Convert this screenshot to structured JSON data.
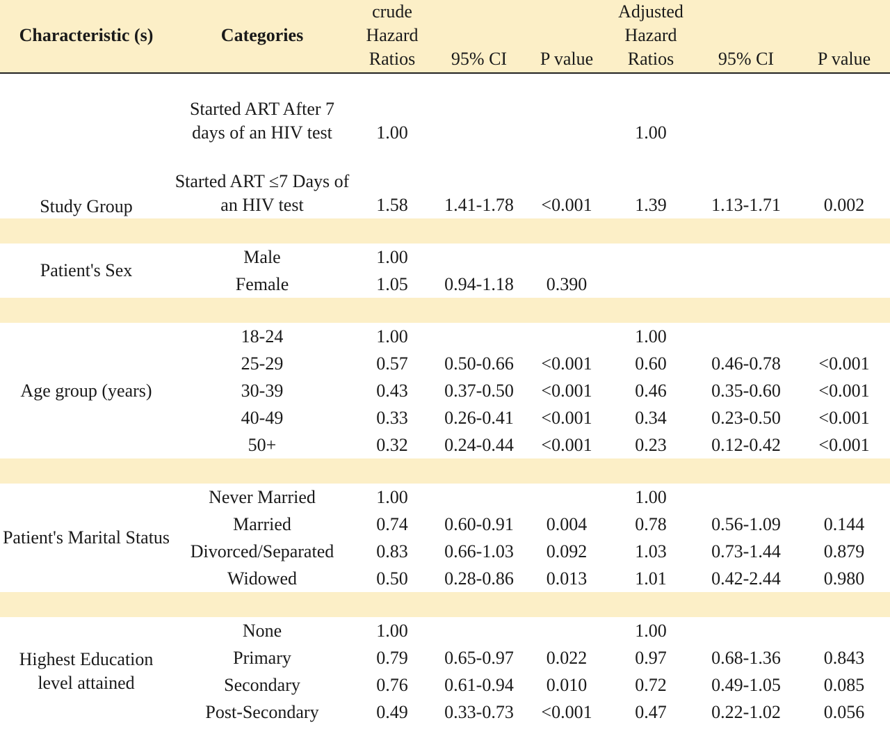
{
  "headers": {
    "characteristic": "Characteristic (s)",
    "categories": "Categories",
    "crude_hr": "crude Hazard Ratios",
    "ci1": "95% CI",
    "p1": "P value",
    "adj_hr": "Adjusted Hazard Ratios",
    "ci2": "95% CI",
    "p2": "P value"
  },
  "study_group": {
    "label": "Study Group",
    "rows": [
      {
        "cat": "Started ART After 7 days of an HIV test",
        "chr": "1.00",
        "ci1": "",
        "p1": "",
        "ahr": "1.00",
        "ci2": "",
        "p2": ""
      },
      {
        "cat": "Started ART ≤7 Days of an HIV test",
        "chr": "1.58",
        "ci1": "1.41-1.78",
        "p1": "<0.001",
        "ahr": "1.39",
        "ci2": "1.13-1.71",
        "p2": "0.002"
      }
    ]
  },
  "sex": {
    "label": "Patient's Sex",
    "rows": [
      {
        "cat": "Male",
        "chr": "1.00",
        "ci1": "",
        "p1": "",
        "ahr": "",
        "ci2": "",
        "p2": ""
      },
      {
        "cat": "Female",
        "chr": "1.05",
        "ci1": "0.94-1.18",
        "p1": "0.390",
        "ahr": "",
        "ci2": "",
        "p2": ""
      }
    ]
  },
  "age": {
    "label": "Age group (years)",
    "rows": [
      {
        "cat": "18-24",
        "chr": "1.00",
        "ci1": "",
        "p1": "",
        "ahr": "1.00",
        "ci2": "",
        "p2": ""
      },
      {
        "cat": "25-29",
        "chr": "0.57",
        "ci1": "0.50-0.66",
        "p1": "<0.001",
        "ahr": "0.60",
        "ci2": "0.46-0.78",
        "p2": "<0.001"
      },
      {
        "cat": "30-39",
        "chr": "0.43",
        "ci1": "0.37-0.50",
        "p1": "<0.001",
        "ahr": "0.46",
        "ci2": "0.35-0.60",
        "p2": "<0.001"
      },
      {
        "cat": "40-49",
        "chr": "0.33",
        "ci1": "0.26-0.41",
        "p1": "<0.001",
        "ahr": "0.34",
        "ci2": "0.23-0.50",
        "p2": "<0.001"
      },
      {
        "cat": "50+",
        "chr": "0.32",
        "ci1": "0.24-0.44",
        "p1": "<0.001",
        "ahr": "0.23",
        "ci2": "0.12-0.42",
        "p2": "<0.001"
      }
    ]
  },
  "marital": {
    "label": "Patient's Marital Status",
    "rows": [
      {
        "cat": "Never Married",
        "chr": "1.00",
        "ci1": "",
        "p1": "",
        "ahr": "1.00",
        "ci2": "",
        "p2": ""
      },
      {
        "cat": "Married",
        "chr": "0.74",
        "ci1": "0.60-0.91",
        "p1": "0.004",
        "ahr": "0.78",
        "ci2": "0.56-1.09",
        "p2": "0.144"
      },
      {
        "cat": "Divorced/Separated",
        "chr": "0.83",
        "ci1": "0.66-1.03",
        "p1": "0.092",
        "ahr": "1.03",
        "ci2": "0.73-1.44",
        "p2": "0.879"
      },
      {
        "cat": "Widowed",
        "chr": "0.50",
        "ci1": "0.28-0.86",
        "p1": "0.013",
        "ahr": "1.01",
        "ci2": "0.42-2.44",
        "p2": "0.980"
      }
    ]
  },
  "education": {
    "label": "Highest Education level attained",
    "rows": [
      {
        "cat": "None",
        "chr": "1.00",
        "ci1": "",
        "p1": "",
        "ahr": "1.00",
        "ci2": "",
        "p2": ""
      },
      {
        "cat": "Primary",
        "chr": "0.79",
        "ci1": "0.65-0.97",
        "p1": "0.022",
        "ahr": "0.97",
        "ci2": "0.68-1.36",
        "p2": "0.843"
      },
      {
        "cat": "Secondary",
        "chr": "0.76",
        "ci1": "0.61-0.94",
        "p1": "0.010",
        "ahr": "0.72",
        "ci2": "0.49-1.05",
        "p2": "0.085"
      },
      {
        "cat": "Post-Secondary",
        "chr": "0.49",
        "ci1": "0.33-0.73",
        "p1": "<0.001",
        "ahr": "0.47",
        "ci2": "0.22-1.02",
        "p2": "0.056"
      }
    ]
  }
}
